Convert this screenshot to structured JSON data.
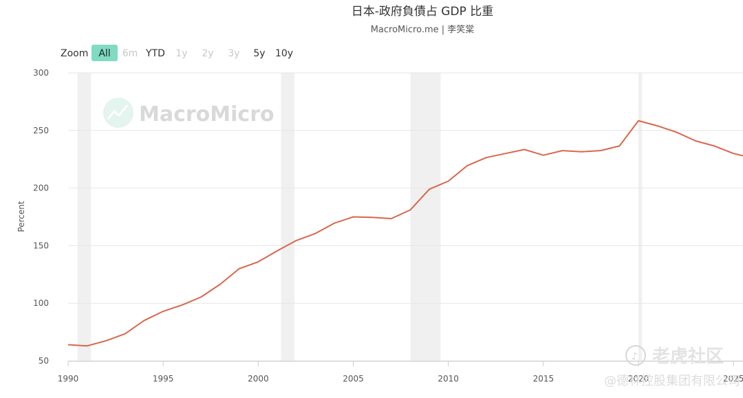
{
  "header": {
    "title": "日本-政府負債占 GDP 比重",
    "subtitle": "MacroMicro.me | 李笑棠"
  },
  "zoom": {
    "label": "Zoom",
    "buttons": [
      {
        "label": "All",
        "state": "active"
      },
      {
        "label": "6m",
        "state": "disabled"
      },
      {
        "label": "YTD",
        "state": "normal"
      },
      {
        "label": "1y",
        "state": "disabled"
      },
      {
        "label": "2y",
        "state": "disabled"
      },
      {
        "label": "3y",
        "state": "disabled"
      },
      {
        "label": "5y",
        "state": "normal"
      },
      {
        "label": "10y",
        "state": "normal"
      }
    ]
  },
  "watermarks": {
    "brand": "MacroMicro",
    "community": "老虎社区",
    "company": "@德林控股集团有限公司"
  },
  "colors": {
    "series": "#d9664a",
    "zoom_active_bg": "#7fdbc2",
    "recession_band": "#f0f0f0"
  },
  "chart_data": {
    "type": "line",
    "title": "日本-政府負債占 GDP 比重",
    "subtitle": "MacroMicro.me | 李笑棠",
    "xlabel": "",
    "ylabel": "Percent",
    "xlim": [
      1990,
      2025.5
    ],
    "ylim": [
      50,
      300
    ],
    "y_ticks": [
      50,
      100,
      150,
      200,
      250,
      300
    ],
    "x_ticks": [
      1990,
      1995,
      2000,
      2005,
      2010,
      2015,
      2020,
      2025
    ],
    "grid": "horizontal",
    "recession_bands": [
      [
        1990.5,
        1991.2
      ],
      [
        2001.2,
        2001.9
      ],
      [
        2008.0,
        2009.6
      ],
      [
        2020.0,
        2020.2
      ]
    ],
    "series": [
      {
        "x": [
          1990,
          1991,
          1992,
          1993,
          1994,
          1995,
          1996,
          1997,
          1998,
          1999,
          2000,
          2001,
          2002,
          2003,
          2004,
          2005,
          2006,
          2007,
          2008,
          2009,
          2010,
          2011,
          2012,
          2013,
          2014,
          2015,
          2016,
          2017,
          2018,
          2019,
          2020,
          2021,
          2022,
          2023,
          2024,
          2025,
          2025.5
        ],
        "values": [
          64,
          63,
          67.5,
          73.5,
          85,
          93,
          98.5,
          105.5,
          116.5,
          130,
          136,
          145.5,
          154.5,
          160.5,
          169.5,
          175,
          174.5,
          173.5,
          181,
          199,
          206,
          219.5,
          226.5,
          230,
          233.5,
          228.5,
          232.5,
          231.5,
          232.5,
          236.5,
          258.5,
          254,
          248.5,
          241,
          236.5,
          230,
          228
        ]
      }
    ]
  }
}
